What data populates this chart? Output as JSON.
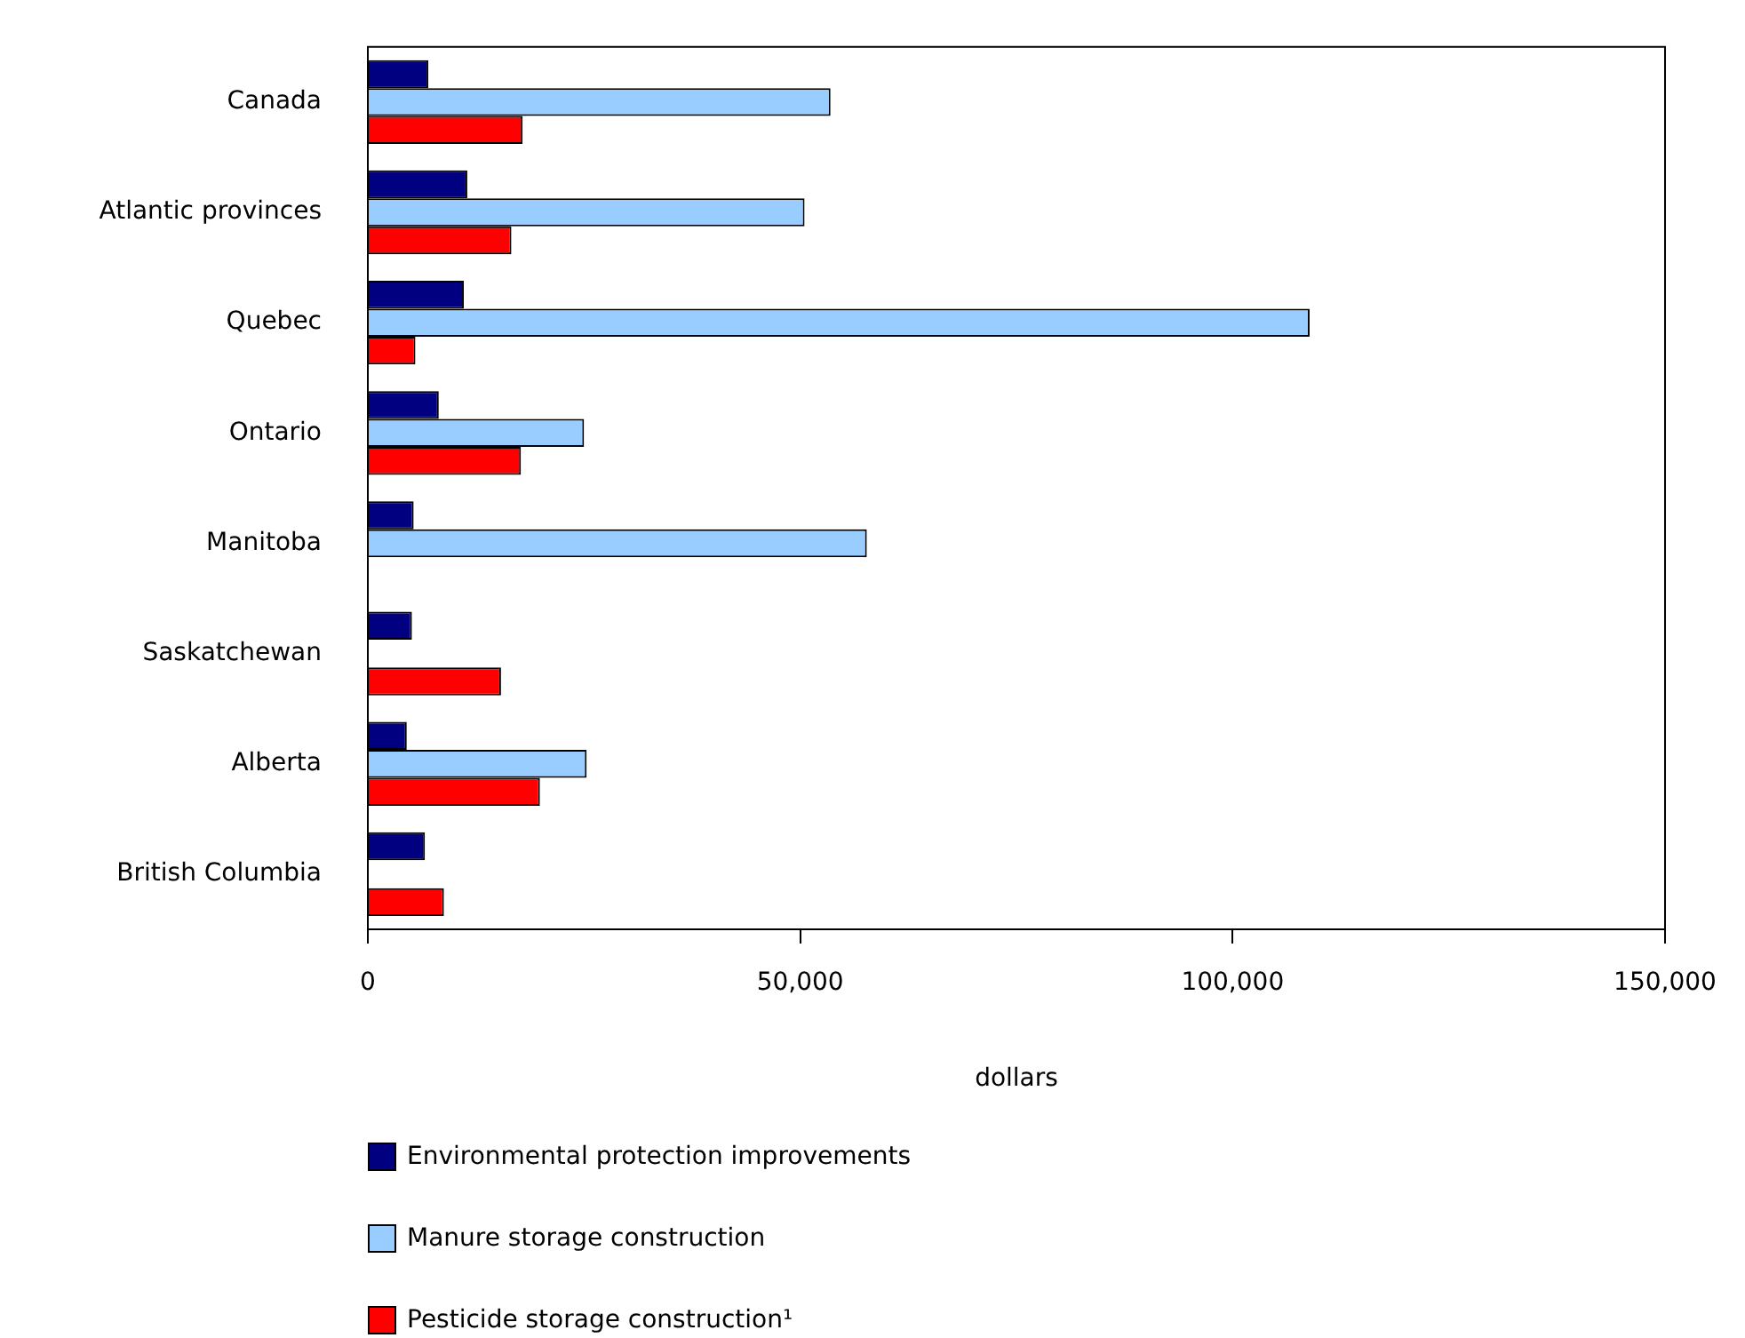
{
  "chart_data": {
    "type": "bar",
    "orientation": "horizontal",
    "xlabel": "dollars",
    "categories": [
      "Canada",
      "Atlantic provinces",
      "Quebec",
      "Ontario",
      "Manitoba",
      "Saskatchewan",
      "Alberta",
      "British Columbia"
    ],
    "series": [
      {
        "name": "Environmental protection improvements",
        "color": "#000080",
        "values": [
          7000,
          11500,
          11100,
          8200,
          5300,
          5100,
          4500,
          6600
        ]
      },
      {
        "name": "Manure storage construction",
        "color": "#99ccff",
        "values": [
          53500,
          50500,
          108900,
          25000,
          57700,
          null,
          25300,
          null
        ]
      },
      {
        "name": "Pesticide storage construction¹",
        "color": "#ff0000",
        "values": [
          17900,
          16600,
          5500,
          17700,
          null,
          15400,
          19900,
          8800
        ]
      }
    ],
    "xlim": [
      0,
      150000
    ],
    "xticks": [
      {
        "value": 0,
        "label": "0"
      },
      {
        "value": 50000,
        "label": "50,000"
      },
      {
        "value": 100000,
        "label": "100,000"
      },
      {
        "value": 150000,
        "label": "150,000"
      }
    ],
    "grid": false,
    "legend": "bottom"
  }
}
